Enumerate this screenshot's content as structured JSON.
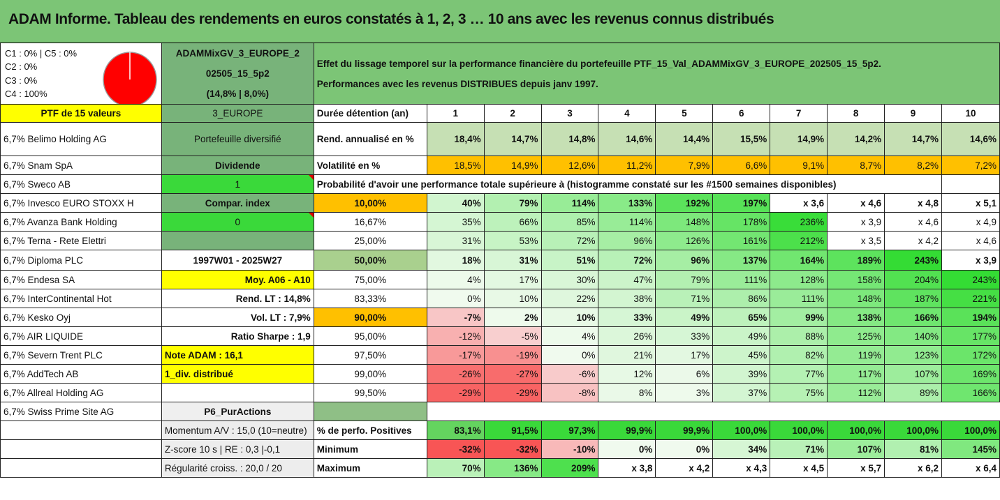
{
  "title": "ADAM Informe. Tableau des rendements en euros constatés à 1, 2, 3 … 10 ans avec les revenus connus distribués",
  "header": {
    "legend": [
      "C1 : 0% | C5 : 0%",
      "C2 : 0%",
      "C3 : 0%",
      "C4 : 100%"
    ],
    "pie_color": "#ff0000",
    "portfolio_code_line1": "ADAMMixGV_3_EUROPE_2",
    "portfolio_code_line2": "02505_15_5p2",
    "portfolio_code_line3": "(14,8% | 8,0%)",
    "effect_line1": "Effet du lissage temporel sur la performance financière du portefeuille PTF_15_Val_ADAMMixGV_3_EUROPE_202505_15_5p2.",
    "effect_line2": "Performances avec les revenus DISTRIBUES depuis janv 1997."
  },
  "years_header": {
    "label": "Durée détention (an)",
    "years": [
      "1",
      "2",
      "3",
      "4",
      "5",
      "6",
      "7",
      "8",
      "9",
      "10"
    ]
  },
  "holdings": [
    "PTF de 15 valeurs",
    "6,7% Belimo Holding AG",
    "6,7% Snam SpA",
    "6,7% Sweco AB",
    "6,7% Invesco EURO STOXX H",
    "6,7% Avanza Bank Holding",
    "6,7% Terna - Rete Elettri",
    "6,7% Diploma PLC",
    "6,7% Endesa SA",
    "6,7% InterContinental Hot",
    "6,7% Kesko Oyj",
    "6,7% AIR LIQUIDE",
    "6,7% Severn Trent PLC",
    "6,7% AddTech AB",
    "6,7% Allreal Holding AG",
    "6,7% Swiss Prime Site AG"
  ],
  "info_col": [
    "3_EUROPE",
    "Portefeuille diversifié",
    "Dividende",
    "1",
    "Compar. index",
    "0",
    "",
    "1997W01 - 2025W27",
    "Moy. A06 - A10",
    "Rend. LT : 14,8%",
    "Vol. LT : 7,9%",
    "Ratio Sharpe : 1,9",
    "Note ADAM : 16,1",
    "1_div. distribué",
    "",
    "P6_PurActions"
  ],
  "rend": {
    "label": "Rend. annualisé en %",
    "values": [
      "18,4%",
      "14,7%",
      "14,8%",
      "14,6%",
      "14,4%",
      "15,5%",
      "14,9%",
      "14,2%",
      "14,7%",
      "14,6%"
    ]
  },
  "vol": {
    "label": "Volatilité en %",
    "values": [
      "18,5%",
      "14,9%",
      "12,6%",
      "11,2%",
      "7,9%",
      "6,6%",
      "9,1%",
      "8,7%",
      "8,2%",
      "7,2%"
    ]
  },
  "prob_title": "Probabilité d'avoir une performance totale supérieure à (histogramme constaté sur les #1500 semaines disponibles)",
  "prob_rows": [
    {
      "p": "10,00%",
      "v": [
        "40%",
        "79%",
        "114%",
        "133%",
        "192%",
        "197%",
        "x 3,6",
        "x 4,6",
        "x 4,8",
        "x 5,1"
      ]
    },
    {
      "p": "16,67%",
      "v": [
        "35%",
        "66%",
        "85%",
        "114%",
        "148%",
        "178%",
        "236%",
        "x 3,9",
        "x 4,6",
        "x 4,9"
      ]
    },
    {
      "p": "25,00%",
      "v": [
        "31%",
        "53%",
        "72%",
        "96%",
        "126%",
        "161%",
        "212%",
        "x 3,5",
        "x 4,2",
        "x 4,6"
      ]
    },
    {
      "p": "50,00%",
      "v": [
        "18%",
        "31%",
        "51%",
        "72%",
        "96%",
        "137%",
        "164%",
        "189%",
        "243%",
        "x 3,9"
      ]
    },
    {
      "p": "75,00%",
      "v": [
        "4%",
        "17%",
        "30%",
        "47%",
        "79%",
        "111%",
        "128%",
        "158%",
        "204%",
        "243%"
      ]
    },
    {
      "p": "83,33%",
      "v": [
        "0%",
        "10%",
        "22%",
        "38%",
        "71%",
        "86%",
        "111%",
        "148%",
        "187%",
        "221%"
      ]
    },
    {
      "p": "90,00%",
      "v": [
        "-7%",
        "2%",
        "10%",
        "33%",
        "49%",
        "65%",
        "99%",
        "138%",
        "166%",
        "194%"
      ]
    },
    {
      "p": "95,00%",
      "v": [
        "-12%",
        "-5%",
        "4%",
        "26%",
        "33%",
        "49%",
        "88%",
        "125%",
        "140%",
        "177%"
      ]
    },
    {
      "p": "97,50%",
      "v": [
        "-17%",
        "-19%",
        "0%",
        "21%",
        "17%",
        "45%",
        "82%",
        "119%",
        "123%",
        "172%"
      ]
    },
    {
      "p": "99,00%",
      "v": [
        "-26%",
        "-27%",
        "-6%",
        "12%",
        "6%",
        "39%",
        "77%",
        "117%",
        "107%",
        "169%"
      ]
    },
    {
      "p": "99,50%",
      "v": [
        "-29%",
        "-29%",
        "-8%",
        "8%",
        "3%",
        "37%",
        "75%",
        "112%",
        "89%",
        "166%"
      ]
    }
  ],
  "bottom": [
    {
      "left": "Momentum A/V : 15,0 (10=neutre)",
      "label": "% de perfo. Positives",
      "v": [
        "83,1%",
        "91,5%",
        "97,3%",
        "99,9%",
        "99,9%",
        "100,0%",
        "100,0%",
        "100,0%",
        "100,0%",
        "100,0%"
      ]
    },
    {
      "left": "Z-score 10 s | RE : 0,3 |-0,1",
      "label": "Minimum",
      "v": [
        "-32%",
        "-32%",
        "-10%",
        "0%",
        "0%",
        "34%",
        "71%",
        "107%",
        "81%",
        "145%"
      ]
    },
    {
      "left": "Régularité croiss. : 20,0 / 20",
      "label": "Maximum",
      "v": [
        "70%",
        "136%",
        "209%",
        "x 3,8",
        "x 4,2",
        "x 4,3",
        "x 4,5",
        "x 5,7",
        "x 6,2",
        "x 6,4"
      ]
    }
  ]
}
